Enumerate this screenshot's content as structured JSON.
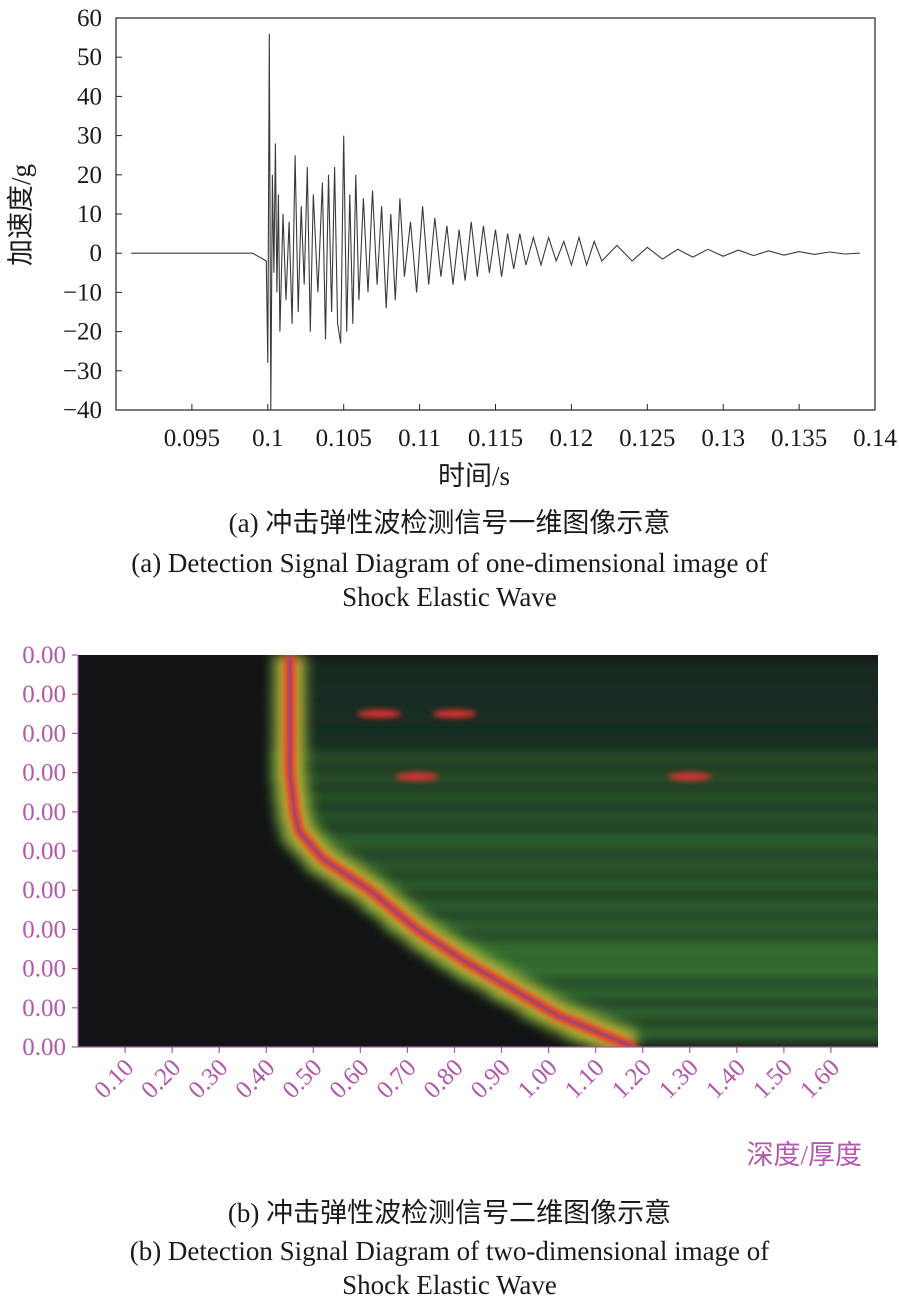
{
  "chart_data": [
    {
      "type": "line",
      "xlabel": "时间/s",
      "ylabel": "加速度/g",
      "xlim": [
        0.09,
        0.14
      ],
      "ylim": [
        -40,
        60
      ],
      "x_ticks": [
        "0.095",
        "0.1",
        "0.105",
        "0.11",
        "0.115",
        "0.12",
        "0.125",
        "0.13",
        "0.135",
        "0.14"
      ],
      "y_ticks": [
        "60",
        "50",
        "40",
        "30",
        "20",
        "10",
        "0",
        "−10",
        "−20",
        "−30",
        "−40"
      ],
      "series": [
        {
          "x": [
            0.091,
            0.095,
            0.099,
            0.0999,
            0.1,
            0.1001,
            0.1002,
            0.1003,
            0.1004,
            0.1005,
            0.1006,
            0.1007,
            0.1008,
            0.101,
            0.1012,
            0.1014,
            0.1016,
            0.1018,
            0.102,
            0.1022,
            0.1024,
            0.1026,
            0.1028,
            0.103,
            0.1033,
            0.1036,
            0.1038,
            0.104,
            0.1042,
            0.1044,
            0.1046,
            0.1048,
            0.105,
            0.1052,
            0.1054,
            0.1056,
            0.1058,
            0.106,
            0.1063,
            0.1066,
            0.1069,
            0.1072,
            0.1075,
            0.1078,
            0.1081,
            0.1084,
            0.1087,
            0.109,
            0.1094,
            0.1098,
            0.1102,
            0.1106,
            0.111,
            0.1114,
            0.1118,
            0.1122,
            0.1126,
            0.113,
            0.1134,
            0.1138,
            0.1142,
            0.1146,
            0.115,
            0.1154,
            0.1158,
            0.1162,
            0.1166,
            0.117,
            0.1175,
            0.118,
            0.1185,
            0.119,
            0.1195,
            0.12,
            0.1205,
            0.121,
            0.1215,
            0.122,
            0.123,
            0.124,
            0.125,
            0.126,
            0.127,
            0.128,
            0.129,
            0.13,
            0.131,
            0.132,
            0.133,
            0.134,
            0.135,
            0.136,
            0.137,
            0.138,
            0.139
          ],
          "y": [
            0,
            0,
            0,
            -2,
            -28,
            56,
            -40,
            20,
            -5,
            28,
            -10,
            15,
            -20,
            10,
            -12,
            8,
            -18,
            25,
            -15,
            12,
            -8,
            22,
            -20,
            15,
            -10,
            18,
            -22,
            20,
            -15,
            22,
            -18,
            -23,
            30,
            -20,
            15,
            -18,
            20,
            -12,
            14,
            -10,
            16,
            -8,
            12,
            -14,
            10,
            -12,
            14,
            -6,
            8,
            -10,
            12,
            -8,
            9,
            -6,
            7,
            -8,
            6,
            -7,
            8,
            -6,
            7,
            -5,
            6,
            -6,
            5,
            -4,
            5,
            -3,
            4,
            -3,
            4,
            -2,
            3,
            -3,
            4,
            -3,
            3,
            -2,
            2,
            -2,
            1.5,
            -1.5,
            1,
            -1,
            1,
            -0.8,
            0.8,
            -0.6,
            0.6,
            -0.5,
            0.4,
            -0.3,
            0.3,
            -0.2,
            0
          ]
        }
      ]
    },
    {
      "type": "heatmap",
      "xlabel": "深度/厚度",
      "x_ticks": [
        "0.10",
        "0.20",
        "0.30",
        "0.40",
        "0.50",
        "0.60",
        "0.70",
        "0.80",
        "0.90",
        "1.00",
        "1.10",
        "1.20",
        "1.30",
        "1.40",
        "1.50",
        "1.60"
      ],
      "y_ticks": [
        "0.00",
        "0.00",
        "0.00",
        "0.00",
        "0.00",
        "0.00",
        "0.00",
        "0.00",
        "0.00",
        "0.00",
        "0.00"
      ],
      "colormap": [
        "#111314",
        "#1e4630",
        "#3f8a3a",
        "#9bc53f",
        "#e8b22a",
        "#e03030"
      ],
      "xlim": [
        0.0,
        1.7
      ],
      "ridge": {
        "x": [
          0.45,
          0.45,
          0.45,
          0.46,
          0.47,
          0.52,
          0.62,
          0.72,
          0.82,
          0.92,
          1.02,
          1.12,
          1.18
        ],
        "row_fraction": [
          0.0,
          0.15,
          0.3,
          0.4,
          0.45,
          0.52,
          0.6,
          0.7,
          0.78,
          0.85,
          0.92,
          0.97,
          1.0
        ]
      }
    }
  ],
  "captions": {
    "a_cn": "(a) 冲击弹性波检测信号一维图像示意",
    "a_en_1": "(a) Detection Signal Diagram of one-dimensional image of",
    "a_en_2": "Shock Elastic Wave",
    "b_cn": "(b) 冲击弹性波检测信号二维图像示意",
    "b_en_1": "(b) Detection Signal Diagram of two-dimensional image of",
    "b_en_2": "Shock Elastic Wave"
  }
}
